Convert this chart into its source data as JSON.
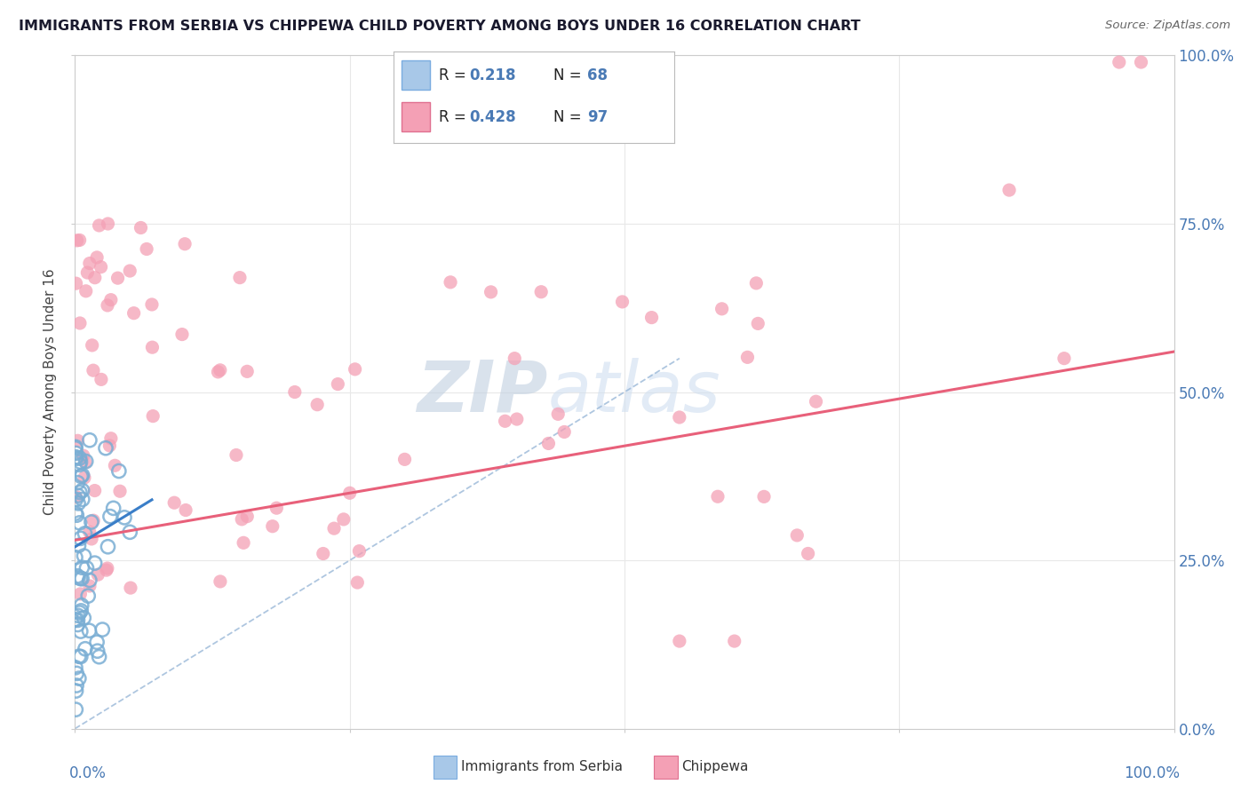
{
  "title": "IMMIGRANTS FROM SERBIA VS CHIPPEWA CHILD POVERTY AMONG BOYS UNDER 16 CORRELATION CHART",
  "source": "Source: ZipAtlas.com",
  "legend_serbia_r": "0.218",
  "legend_serbia_n": "68",
  "legend_chippewa_r": "0.428",
  "legend_chippewa_n": "97",
  "serbia_color": "#7aaed4",
  "chippewa_color": "#f4a0b5",
  "serbia_trend_color": "#3a7ec8",
  "chippewa_trend_color": "#e8607a",
  "diagonal_color": "#9ab8d8",
  "r_n_color": "#4a7ab5",
  "label_color": "#4a7ab5",
  "watermark_zip_color": "#c0cfe0",
  "watermark_atlas_color": "#d0dff0",
  "xlim": [
    0,
    100
  ],
  "ylim": [
    0,
    100
  ],
  "bg_color": "#ffffff",
  "grid_color": "#e8e8e8",
  "chippewa_trend_x0": 0,
  "chippewa_trend_y0": 28,
  "chippewa_trend_x1": 100,
  "chippewa_trend_y1": 56,
  "serbia_trend_x0": 0,
  "serbia_trend_y0": 27,
  "serbia_trend_x1": 7,
  "serbia_trend_y1": 34,
  "diag_x0": 0,
  "diag_y0": 0,
  "diag_x1": 55,
  "diag_y1": 55
}
